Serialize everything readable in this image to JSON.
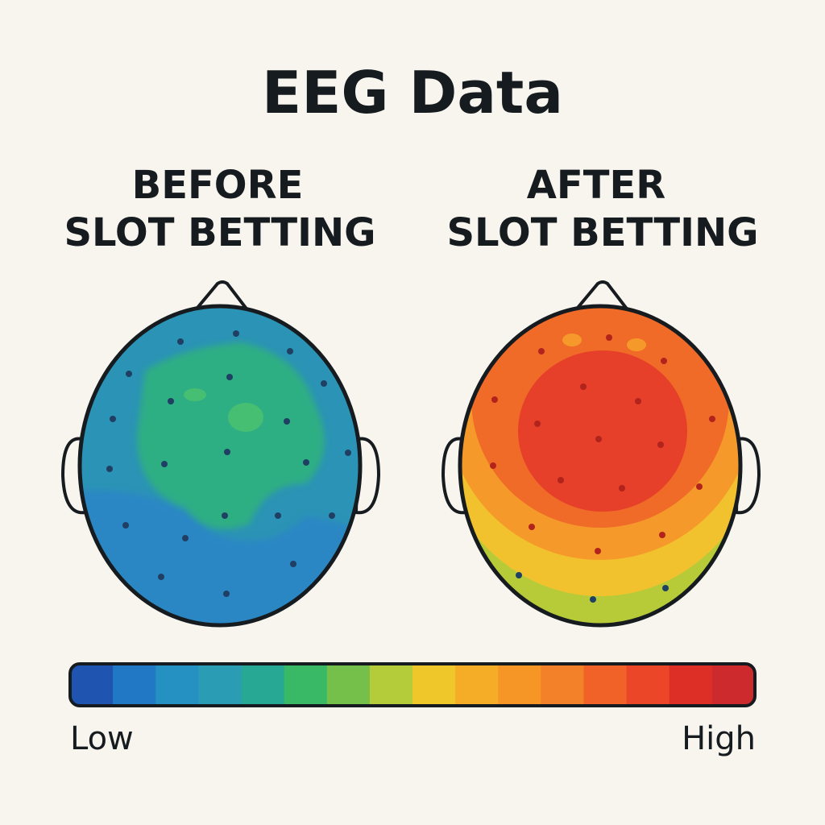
{
  "header": {
    "title": "EEG Data"
  },
  "panels": [
    {
      "title": [
        "BEFORE",
        "SLOT BETTING"
      ]
    },
    {
      "title": [
        "AFTER",
        "SLOT BETTING"
      ]
    }
  ],
  "legend": {
    "low": "Low",
    "high": "High"
  }
}
